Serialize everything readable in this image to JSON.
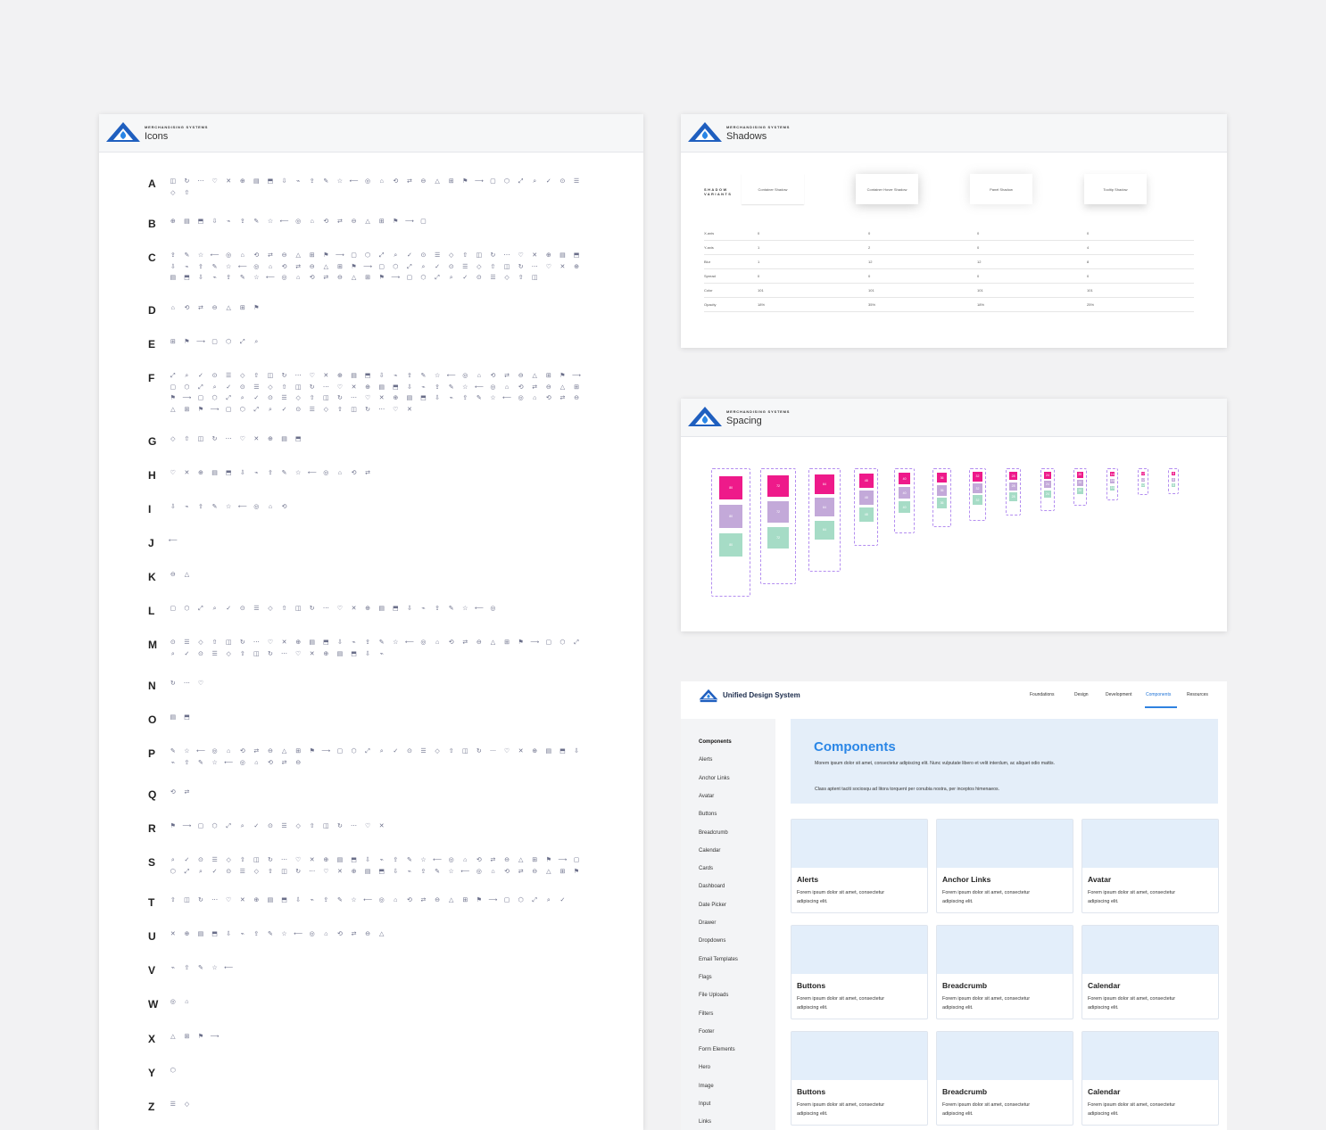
{
  "brand": {
    "tagline": "MERCHANDISING SYSTEMS",
    "color_primary": "#1f5fbf",
    "color_accent": "#2a86e6"
  },
  "icons_panel": {
    "title": "Icons",
    "rows": [
      {
        "letter": "A",
        "count": 32,
        "top": 71
      },
      {
        "letter": "B",
        "count": 19,
        "top": 116
      },
      {
        "letter": "C",
        "count": 87,
        "top": 154
      },
      {
        "letter": "D",
        "count": 7,
        "top": 213
      },
      {
        "letter": "E",
        "count": 7,
        "top": 251
      },
      {
        "letter": "F",
        "count": 108,
        "top": 289
      },
      {
        "letter": "G",
        "count": 10,
        "top": 360
      },
      {
        "letter": "H",
        "count": 15,
        "top": 398
      },
      {
        "letter": "I",
        "count": 9,
        "top": 436
      },
      {
        "letter": "J",
        "count": 1,
        "top": 474
      },
      {
        "letter": "K",
        "count": 2,
        "top": 512
      },
      {
        "letter": "L",
        "count": 24,
        "top": 550
      },
      {
        "letter": "M",
        "count": 46,
        "top": 588
      },
      {
        "letter": "N",
        "count": 3,
        "top": 634
      },
      {
        "letter": "O",
        "count": 2,
        "top": 672
      },
      {
        "letter": "P",
        "count": 40,
        "top": 710
      },
      {
        "letter": "Q",
        "count": 2,
        "top": 756
      },
      {
        "letter": "R",
        "count": 16,
        "top": 794
      },
      {
        "letter": "S",
        "count": 60,
        "top": 832
      },
      {
        "letter": "T",
        "count": 29,
        "top": 877
      },
      {
        "letter": "U",
        "count": 16,
        "top": 915
      },
      {
        "letter": "V",
        "count": 5,
        "top": 953
      },
      {
        "letter": "W",
        "count": 2,
        "top": 991
      },
      {
        "letter": "X",
        "count": 4,
        "top": 1030
      },
      {
        "letter": "Y",
        "count": 1,
        "top": 1068
      },
      {
        "letter": "Z",
        "count": 2,
        "top": 1106
      }
    ],
    "glyph_set": [
      "◫",
      "▢",
      "◎",
      "⊕",
      "⊙",
      "△",
      "⇪",
      "↻",
      "⬡",
      "⌂",
      "▤",
      "☰",
      "⊞",
      "✎",
      "⋯",
      "⤢",
      "⟲",
      "⬒",
      "◇",
      "⚑",
      "☆",
      "♡",
      "⌕",
      "⇄",
      "⇩",
      "⇧",
      "⟶",
      "⟵",
      "✕",
      "✓",
      "⊖",
      "⌁"
    ]
  },
  "shadows_panel": {
    "title": "Shadows",
    "variants_label": "SHADOW VARIANTS",
    "variants": [
      "Container Shadow",
      "Container Hover Shadow",
      "Panel Shadow",
      "Tooltip Shadow"
    ],
    "rows": [
      {
        "label": "X-axis",
        "values": [
          "0",
          "0",
          "0",
          "0"
        ]
      },
      {
        "label": "Y-axis",
        "values": [
          "1",
          "2",
          "0",
          "4"
        ]
      },
      {
        "label": "Blur",
        "values": [
          "1",
          "12",
          "12",
          "8"
        ]
      },
      {
        "label": "Spread",
        "values": [
          "0",
          "0",
          "0",
          "0"
        ]
      },
      {
        "label": "Color",
        "values": [
          "101",
          "101",
          "101",
          "101"
        ]
      },
      {
        "label": "Opacity",
        "values": [
          "18%",
          "35%",
          "18%",
          "25%"
        ]
      }
    ]
  },
  "spacing_panel": {
    "title": "Spacing",
    "sizes": [
      "80",
      "72",
      "64",
      "48",
      "40",
      "36",
      "32",
      "28",
      "24",
      "20",
      "16",
      "12",
      "8"
    ]
  },
  "ds": {
    "name": "Unified Design System",
    "nav": [
      "Foundations",
      "Design",
      "Development",
      "Components",
      "Resources"
    ],
    "sidebar": [
      "Components",
      "Alerts",
      "Anchor Links",
      "Avatar",
      "Buttons",
      "Breadcrumb",
      "Calendar",
      "Cards",
      "Dashboard",
      "Date Picker",
      "Drawer",
      "Dropdowns",
      "Email Templates",
      "Flags",
      "File Uploads",
      "Filters",
      "Footer",
      "Form Elements",
      "Hero",
      "Image",
      "Input",
      "Links"
    ],
    "hero": {
      "title": "Components",
      "p1": "Morem ipsum dolor sit amet, consectetur adipiscing elit. Nunc vulputate libero et velit interdum, ac aliquet odio mattis.",
      "p2": "Class aptent taciti sociosqu ad litora torquent per conubia nostra, per inceptos himenaeos."
    },
    "cards": [
      {
        "title": "Alerts",
        "body": "Forem ipsum dolor sit amet, consectetur adipiscing elit."
      },
      {
        "title": "Anchor Links",
        "body": "Forem ipsum dolor sit amet, consectetur adipiscing elit."
      },
      {
        "title": "Avatar",
        "body": "Forem ipsum dolor sit amet, consectetur adipiscing elit."
      },
      {
        "title": "Buttons",
        "body": "Forem ipsum dolor sit amet, consectetur adipiscing elit."
      },
      {
        "title": "Breadcrumb",
        "body": "Forem ipsum dolor sit amet, consectetur adipiscing elit."
      },
      {
        "title": "Calendar",
        "body": "Forem ipsum dolor sit amet, consectetur adipiscing elit."
      },
      {
        "title": "Buttons",
        "body": "Forem ipsum dolor sit amet, consectetur adipiscing elit."
      },
      {
        "title": "Breadcrumb",
        "body": "Forem ipsum dolor sit amet, consectetur adipiscing elit."
      },
      {
        "title": "Calendar",
        "body": "Forem ipsum dolor sit amet, consectetur adipiscing elit."
      }
    ]
  }
}
